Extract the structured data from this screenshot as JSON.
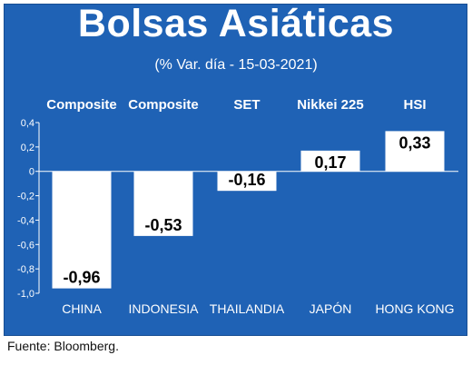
{
  "title": "Bolsas Asiáticas",
  "subtitle": "(% Var. día - 15-03-2021)",
  "source": "Fuente: Bloomberg.",
  "colors": {
    "panel": "#1f62b5",
    "bar": "#ffffff",
    "text": "#ffffff",
    "value_text": "#000000"
  },
  "chart_data": {
    "type": "bar",
    "categories": [
      "CHINA",
      "INDONESIA",
      "THAILANDIA",
      "JAPÓN",
      "HONG KONG"
    ],
    "index_names": [
      "Composite",
      "Composite",
      "SET",
      "Nikkei 225",
      "HSI"
    ],
    "values": [
      -0.96,
      -0.53,
      -0.16,
      0.17,
      0.33
    ],
    "value_labels": [
      "-0,96",
      "-0,53",
      "-0,16",
      "0,17",
      "0,33"
    ],
    "yticks": [
      0.4,
      0.2,
      0,
      -0.2,
      -0.4,
      -0.6,
      -0.8,
      -1.0
    ],
    "ytick_labels": [
      "0,4",
      "0,2",
      "0",
      "-0,2",
      "-0,4",
      "-0,6",
      "-0,8",
      "-1,0"
    ],
    "ylim": [
      -1.0,
      0.4
    ],
    "grid": false
  }
}
